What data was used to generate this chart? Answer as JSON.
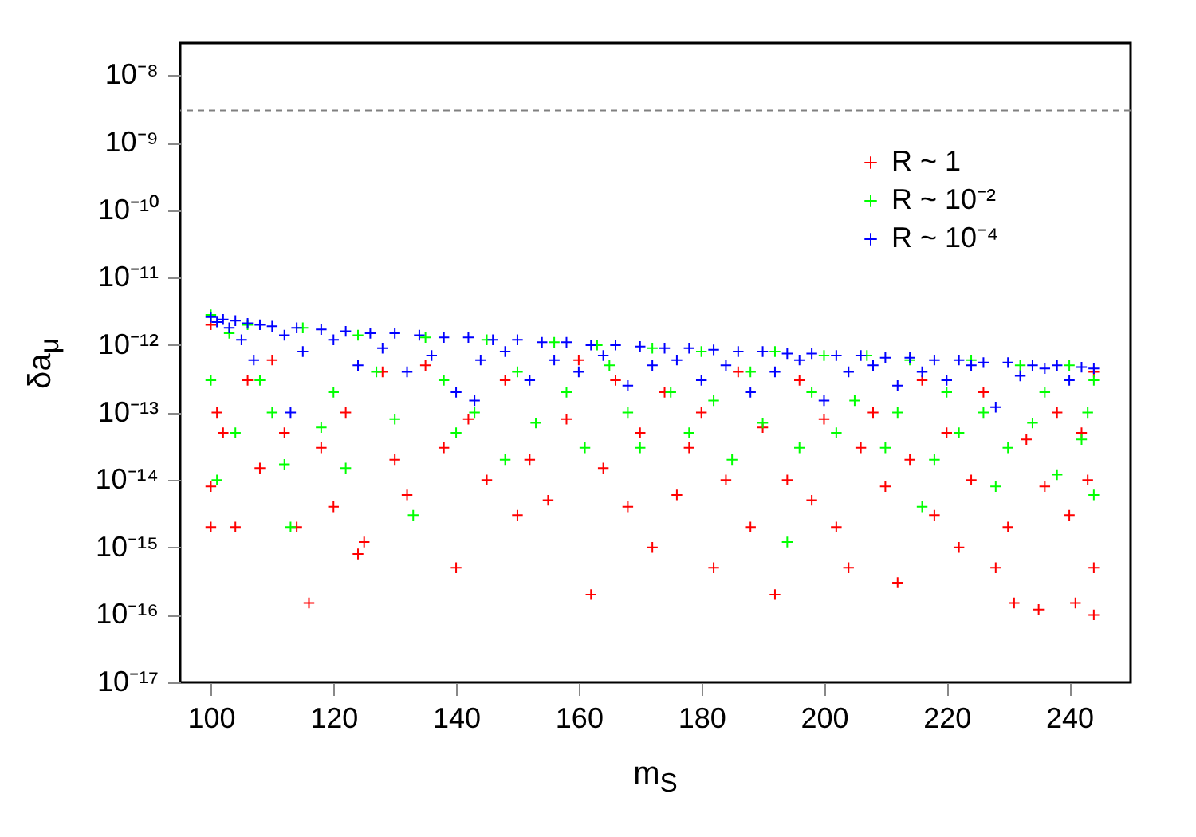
{
  "chart_data": {
    "type": "scatter",
    "xlabel": "m$_{S}$",
    "ylabel": "δa$_{μ}$",
    "log": "y",
    "marker": "cross",
    "legend": "top right",
    "xlim": [
      95,
      250
    ],
    "xticks": [
      100,
      120,
      140,
      160,
      180,
      200,
      220,
      240
    ],
    "ylim": [
      1e-17,
      3e-08
    ],
    "yticks": [
      {
        "value": 1e-17,
        "label": "10⁻¹⁷"
      },
      {
        "value": 1e-16,
        "label": "10⁻¹⁶"
      },
      {
        "value": 1e-15,
        "label": "10⁻¹⁵"
      },
      {
        "value": 1e-14,
        "label": "10⁻¹⁴"
      },
      {
        "value": 1e-13,
        "label": "10⁻¹³"
      },
      {
        "value": 1e-12,
        "label": "10⁻¹²"
      },
      {
        "value": 1e-11,
        "label": "10⁻¹¹"
      },
      {
        "value": 1e-10,
        "label": "10⁻¹⁰"
      },
      {
        "value": 1e-09,
        "label": "10⁻⁹"
      },
      {
        "value": 1e-08,
        "label": "10⁻⁸"
      }
    ],
    "ref_lines": [
      {
        "axis": "y",
        "value": 3e-09,
        "color": "#808080",
        "line_style": "dashed"
      }
    ],
    "series": [
      {
        "name": "R ~ 1",
        "color": "#ff0000",
        "x": [
          100,
          100,
          100,
          101,
          102,
          104,
          106,
          108,
          110,
          112,
          114,
          116,
          118,
          120,
          122,
          124,
          125,
          128,
          130,
          132,
          135,
          138,
          140,
          142,
          145,
          148,
          150,
          152,
          155,
          158,
          160,
          162,
          164,
          166,
          168,
          170,
          172,
          174,
          176,
          178,
          180,
          182,
          184,
          186,
          188,
          190,
          192,
          194,
          196,
          198,
          200,
          202,
          204,
          206,
          208,
          210,
          212,
          214,
          216,
          218,
          220,
          222,
          224,
          226,
          228,
          230,
          231,
          233,
          235,
          236,
          238,
          240,
          241,
          242,
          243,
          244,
          244,
          244
        ],
        "values": [
          2e-12,
          8e-15,
          2e-15,
          1e-13,
          5e-14,
          2e-15,
          3e-13,
          1.5e-14,
          6e-13,
          5e-14,
          2e-15,
          1.5e-16,
          3e-14,
          4e-15,
          1e-13,
          8e-16,
          1.2e-15,
          4e-13,
          2e-14,
          6e-15,
          5e-13,
          3e-14,
          5e-16,
          8e-14,
          1e-14,
          3e-13,
          3e-15,
          2e-14,
          5e-15,
          8e-14,
          6e-13,
          2e-16,
          1.5e-14,
          3e-13,
          4e-15,
          5e-14,
          1e-15,
          2e-13,
          6e-15,
          3e-14,
          1e-13,
          5e-16,
          1e-14,
          4e-13,
          2e-15,
          6e-14,
          2e-16,
          1e-14,
          3e-13,
          5e-15,
          8e-14,
          2e-15,
          5e-16,
          3e-14,
          1e-13,
          8e-15,
          3e-16,
          2e-14,
          3e-13,
          3e-15,
          5e-14,
          1e-15,
          1e-14,
          2e-13,
          5e-16,
          2e-15,
          1.5e-16,
          4e-14,
          1.2e-16,
          8e-15,
          1e-13,
          3e-15,
          1.5e-16,
          5e-14,
          1e-14,
          1e-16,
          5e-16,
          4e-13
        ]
      },
      {
        "name": "R ~ 10⁻²",
        "color": "#00ff00",
        "x": [
          100,
          100,
          101,
          103,
          104,
          106,
          108,
          110,
          112,
          113,
          115,
          118,
          120,
          122,
          124,
          127,
          130,
          133,
          135,
          138,
          140,
          143,
          145,
          148,
          150,
          153,
          156,
          158,
          161,
          163,
          165,
          168,
          170,
          172,
          175,
          178,
          180,
          182,
          185,
          188,
          190,
          192,
          194,
          196,
          198,
          200,
          202,
          205,
          207,
          210,
          212,
          214,
          216,
          218,
          220,
          222,
          224,
          226,
          228,
          230,
          232,
          234,
          236,
          238,
          240,
          242,
          243,
          244,
          244
        ],
        "values": [
          2.8e-12,
          3e-13,
          1e-14,
          1.5e-12,
          5e-14,
          2e-12,
          3e-13,
          1e-13,
          1.7e-14,
          2e-15,
          1.8e-12,
          6e-14,
          2e-13,
          1.5e-14,
          1.4e-12,
          4e-13,
          8e-14,
          3e-15,
          1.3e-12,
          3e-13,
          5e-14,
          1e-13,
          1.2e-12,
          2e-14,
          4e-13,
          7e-14,
          1.1e-12,
          2e-13,
          3e-14,
          1e-12,
          5e-13,
          1e-13,
          3e-14,
          9e-13,
          2e-13,
          5e-14,
          8e-13,
          1.5e-13,
          2e-14,
          4e-13,
          7e-14,
          8e-13,
          1.2e-15,
          3e-14,
          2e-13,
          7e-13,
          5e-14,
          1.5e-13,
          7e-13,
          3e-14,
          1e-13,
          6e-13,
          4e-15,
          2e-14,
          2e-13,
          5e-14,
          6e-13,
          1e-13,
          8e-15,
          3e-14,
          5e-13,
          7e-14,
          2e-13,
          1.2e-14,
          5e-13,
          4e-14,
          1e-13,
          3e-13,
          6e-15
        ]
      },
      {
        "name": "R ~ 10⁻⁴",
        "color": "#0000ff",
        "x": [
          100,
          101,
          102,
          103,
          104,
          105,
          106,
          107,
          108,
          110,
          112,
          113,
          114,
          115,
          118,
          120,
          122,
          124,
          126,
          128,
          130,
          132,
          134,
          136,
          138,
          140,
          142,
          143,
          144,
          146,
          148,
          150,
          152,
          154,
          156,
          158,
          160,
          162,
          164,
          166,
          168,
          170,
          172,
          174,
          176,
          178,
          180,
          182,
          184,
          186,
          188,
          190,
          192,
          194,
          196,
          198,
          200,
          202,
          204,
          206,
          208,
          210,
          212,
          214,
          216,
          218,
          220,
          222,
          224,
          226,
          228,
          230,
          232,
          234,
          236,
          238,
          240,
          242,
          244
        ],
        "values": [
          2.6e-12,
          2.2e-12,
          2.4e-12,
          1.8e-12,
          2.3e-12,
          1.2e-12,
          2.1e-12,
          6e-13,
          2e-12,
          1.9e-12,
          1.4e-12,
          1e-13,
          1.8e-12,
          8e-13,
          1.7e-12,
          1.2e-12,
          1.6e-12,
          5e-13,
          1.5e-12,
          9e-13,
          1.5e-12,
          4e-13,
          1.4e-12,
          7e-13,
          1.3e-12,
          2e-13,
          1.3e-12,
          1.5e-13,
          6e-13,
          1.2e-12,
          8e-13,
          1.2e-12,
          3e-13,
          1.1e-12,
          6e-13,
          1.1e-12,
          4e-13,
          1e-12,
          7e-13,
          1e-12,
          2.5e-13,
          9.5e-13,
          5e-13,
          9e-13,
          6e-13,
          9e-13,
          3e-13,
          8.5e-13,
          5e-13,
          8e-13,
          2e-13,
          8e-13,
          4e-13,
          7.5e-13,
          6e-13,
          7.5e-13,
          1.5e-13,
          7e-13,
          4e-13,
          7e-13,
          5e-13,
          6.5e-13,
          2.5e-13,
          6.5e-13,
          4e-13,
          6e-13,
          3e-13,
          6e-13,
          5e-13,
          5.5e-13,
          1.2e-13,
          5.5e-13,
          3.5e-13,
          5e-13,
          4.5e-13,
          5e-13,
          3e-13,
          4.7e-13,
          4.5e-13
        ]
      }
    ]
  }
}
